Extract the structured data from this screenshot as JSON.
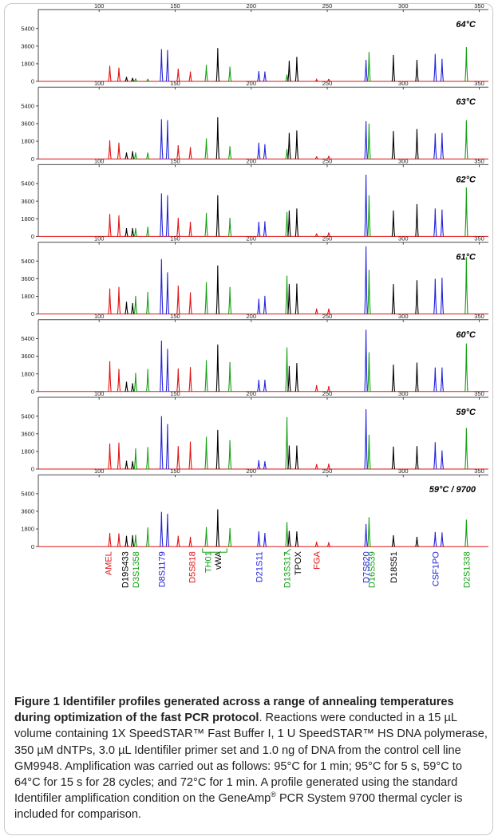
{
  "colors": {
    "blue": "#2323dc",
    "green": "#14a014",
    "black": "#000000",
    "red": "#e01414",
    "axis": "#4a4a4a"
  },
  "chart_data": {
    "type": "line",
    "x_range": [
      60,
      356
    ],
    "x_ticks": [
      100,
      150,
      200,
      250,
      300,
      350
    ],
    "y_ticks": [
      0,
      1800,
      3600,
      5400
    ],
    "y_max": 7000,
    "series": [
      {
        "dye": "blue"
      },
      {
        "dye": "green"
      },
      {
        "dye": "black"
      },
      {
        "dye": "red"
      }
    ],
    "peaks": [
      {
        "x": 107.0,
        "dye": "red"
      },
      {
        "x": 113.0,
        "dye": "red"
      },
      {
        "x": 118.0,
        "dye": "black"
      },
      {
        "x": 122.0,
        "dye": "black"
      },
      {
        "x": 124.0,
        "dye": "green"
      },
      {
        "x": 132.0,
        "dye": "green"
      },
      {
        "x": 141.0,
        "dye": "blue"
      },
      {
        "x": 145.0,
        "dye": "blue"
      },
      {
        "x": 152.0,
        "dye": "red"
      },
      {
        "x": 160.0,
        "dye": "red"
      },
      {
        "x": 170.5,
        "dye": "green"
      },
      {
        "x": 178.0,
        "dye": "black"
      },
      {
        "x": 186.0,
        "dye": "green"
      },
      {
        "x": 205.0,
        "dye": "blue"
      },
      {
        "x": 209.0,
        "dye": "blue"
      },
      {
        "x": 223.5,
        "dye": "green"
      },
      {
        "x": 225.0,
        "dye": "black"
      },
      {
        "x": 230.0,
        "dye": "black"
      },
      {
        "x": 243.0,
        "dye": "red"
      },
      {
        "x": 251.0,
        "dye": "red"
      },
      {
        "x": 275.5,
        "dye": "blue"
      },
      {
        "x": 277.5,
        "dye": "green"
      },
      {
        "x": 293.5,
        "dye": "black"
      },
      {
        "x": 309.0,
        "dye": "black"
      },
      {
        "x": 321.0,
        "dye": "blue"
      },
      {
        "x": 325.5,
        "dye": "blue"
      },
      {
        "x": 341.5,
        "dye": "green"
      }
    ],
    "panels": [
      {
        "label": "64°C",
        "heights": [
          1600,
          1400,
          450,
          350,
          300,
          250,
          3300,
          3200,
          1300,
          1000,
          1700,
          3400,
          1500,
          1050,
          1000,
          700,
          2100,
          2500,
          200,
          250,
          2200,
          3000,
          2700,
          2200,
          2800,
          2300,
          3500
        ]
      },
      {
        "label": "63°C",
        "heights": [
          1900,
          1650,
          650,
          800,
          650,
          650,
          4050,
          3950,
          1400,
          1200,
          2100,
          4250,
          1300,
          1650,
          1500,
          1000,
          2650,
          2900,
          250,
          300,
          3850,
          3600,
          2850,
          3050,
          2600,
          2650,
          3950
        ]
      },
      {
        "label": "62°C",
        "heights": [
          2300,
          2150,
          850,
          850,
          850,
          1000,
          4400,
          4200,
          1900,
          1500,
          2400,
          4200,
          1900,
          1500,
          1550,
          2500,
          2650,
          2850,
          300,
          400,
          6300,
          4200,
          2650,
          3300,
          2850,
          2750,
          5000
        ]
      },
      {
        "label": "61°C",
        "heights": [
          2600,
          2750,
          1250,
          1100,
          1850,
          2250,
          5600,
          4250,
          2900,
          2200,
          3250,
          4950,
          2750,
          1550,
          1850,
          3900,
          3050,
          3100,
          550,
          550,
          6900,
          4500,
          3050,
          3450,
          3600,
          3700,
          5800
        ]
      },
      {
        "label": "60°C",
        "heights": [
          3100,
          2300,
          1000,
          850,
          1900,
          2300,
          5200,
          4350,
          2350,
          2500,
          3200,
          4800,
          3000,
          1200,
          1200,
          4500,
          2600,
          2900,
          650,
          550,
          6300,
          4000,
          2750,
          2950,
          2450,
          2450,
          4900
        ]
      },
      {
        "label": "59°C",
        "heights": [
          2600,
          2700,
          850,
          800,
          2100,
          2250,
          5400,
          4600,
          2350,
          2800,
          3300,
          4000,
          2950,
          900,
          800,
          5300,
          2400,
          2400,
          500,
          550,
          6100,
          3500,
          2300,
          2350,
          2750,
          1900,
          4200
        ]
      },
      {
        "label": "59°C / 9700",
        "heights": [
          1400,
          1350,
          1100,
          1150,
          1200,
          1950,
          3550,
          3350,
          1100,
          1000,
          2000,
          3800,
          1900,
          1550,
          1400,
          2500,
          1600,
          1550,
          500,
          450,
          2300,
          3000,
          1150,
          1000,
          1500,
          1450,
          2750
        ]
      }
    ],
    "loci": [
      {
        "name": "AMEL",
        "dye": "red"
      },
      {
        "name": "D19S433",
        "dye": "black"
      },
      {
        "name": "D3S1358",
        "dye": "green"
      },
      {
        "name": "D8S1179",
        "dye": "blue"
      },
      {
        "name": "D5S818",
        "dye": "red"
      },
      {
        "name": "TH01",
        "dye": "green"
      },
      {
        "name": "vWA",
        "dye": "black"
      },
      {
        "name": "D21S11",
        "dye": "blue"
      },
      {
        "name": "D13S317",
        "dye": "green"
      },
      {
        "name": "TPOX",
        "dye": "black"
      },
      {
        "name": "FGA",
        "dye": "red"
      },
      {
        "name": "D7S820",
        "dye": "blue"
      },
      {
        "name": "D16S539",
        "dye": "green"
      },
      {
        "name": "D18S51",
        "dye": "black"
      },
      {
        "name": "CSF1PO",
        "dye": "blue"
      },
      {
        "name": "D2S1338",
        "dye": "green"
      }
    ]
  },
  "caption": {
    "title": "Figure 1 Identifiler profiles generated across a range of annealing temperatures during optimization of the fast PCR protocol",
    "body_1": ". Reactions were conducted in a 15 µL volume containing 1X SpeedSTAR™ Fast Buffer I, 1 U SpeedSTAR™ HS DNA polymerase, 350 µM dNTPs, 3.0 µL Identifiler primer set and 1.0 ng of DNA from the control cell line GM9948. Amplification was carried out as follows: 95°C for 1 min; 95°C for 5 s, 59°C to 64°C for 15 s for 28 cycles; and 72°C for 1 min. A profile generated using the standard Identifiler amplification condition on the GeneAmp",
    "reg": "®",
    "body_2": " PCR System 9700 thermal cycler is included for comparison."
  }
}
